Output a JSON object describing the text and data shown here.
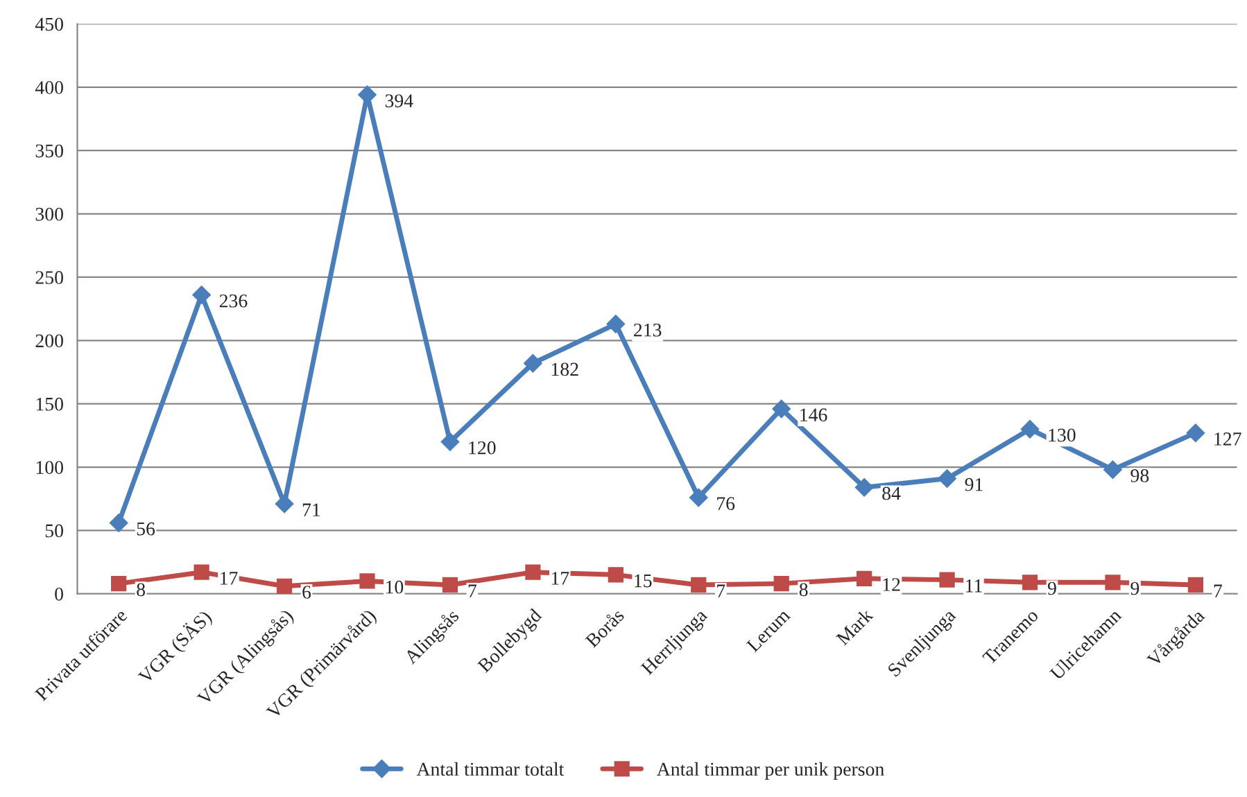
{
  "chart_data": {
    "type": "line",
    "categories": [
      "Privata utförare",
      "VGR (SÄS)",
      "VGR (Alingsås)",
      "VGR (Primärvård)",
      "Alingsås",
      "Bollebygd",
      "Borås",
      "Herrljunga",
      "Lerum",
      "Mark",
      "Svenljunga",
      "Tranemo",
      "Ulricehamn",
      "Vårgårda"
    ],
    "series": [
      {
        "name": "Antal timmar totalt",
        "color": "#4a7ebb",
        "marker": "diamond",
        "values": [
          56,
          236,
          71,
          394,
          120,
          182,
          213,
          76,
          146,
          84,
          91,
          130,
          98,
          127
        ]
      },
      {
        "name": "Antal timmar per unik person",
        "color": "#be4b48",
        "marker": "square",
        "values": [
          8,
          17,
          6,
          10,
          7,
          17,
          15,
          7,
          8,
          12,
          11,
          9,
          9,
          7
        ]
      }
    ],
    "ylim": [
      0,
      450
    ],
    "yticks": [
      0,
      50,
      100,
      150,
      200,
      250,
      300,
      350,
      400,
      450
    ],
    "grid": "y",
    "legend": "bottom",
    "data_labels": true,
    "line_style": "solid"
  }
}
